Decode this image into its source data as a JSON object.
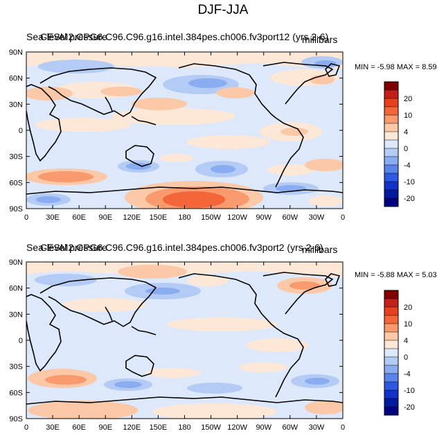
{
  "page": {
    "title": "DJF-JJA"
  },
  "panels": [
    {
      "overlay_title": "Sea-level pressure",
      "case_title": "CESM2.CPG6.C96.C96.g16.intel.384pes.ch006.fv3port12 (yrs 2-6)",
      "units": "millibars",
      "min_label": "MIN =",
      "min_value": "-5.98",
      "max_label": "MAX =",
      "max_value": "8.59"
    },
    {
      "overlay_title": "Sea-level pressure",
      "case_title": "CESM2.CPG6.C96.C96.g16.intel.384pes.ch006.fv3port2 (yrs 2-6)",
      "units": "millibars",
      "min_label": "MIN =",
      "min_value": "-5.88",
      "max_label": "MAX =",
      "max_value": "5.03"
    }
  ],
  "chart_data": {
    "type": "heatmap",
    "projection": "cylindrical equidistant, 0 to 360 longitude",
    "xlabel": "",
    "ylabel": "",
    "xlim": [
      0,
      360
    ],
    "ylim": [
      -90,
      90
    ],
    "x_ticks": [
      "0",
      "30E",
      "60E",
      "90E",
      "120E",
      "150E",
      "180",
      "150W",
      "120W",
      "90W",
      "60W",
      "30W",
      "0"
    ],
    "y_ticks": [
      "90N",
      "60N",
      "30N",
      "0",
      "30S",
      "60S",
      "90S"
    ],
    "colorbar": {
      "labels": [
        "20",
        "10",
        "4",
        "0",
        "-4",
        "-10",
        "-20"
      ],
      "colors": [
        "#800000",
        "#c4201a",
        "#e8401c",
        "#f4653a",
        "#f89a6e",
        "#fbc9a8",
        "#fde8d8",
        "#dde9fb",
        "#b4ccf5",
        "#8aacf0",
        "#5a84ec",
        "#2d58e4",
        "#1231c8",
        "#001a9e",
        "#000080"
      ]
    }
  }
}
